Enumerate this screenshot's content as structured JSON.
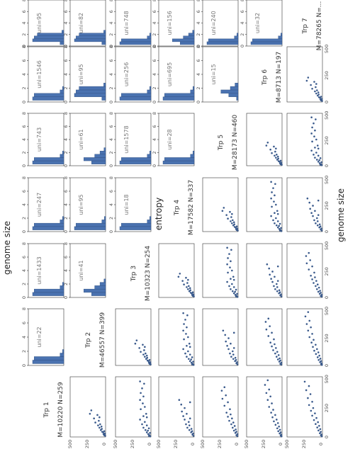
{
  "figure": {
    "top_label": "entropy",
    "right_label": "genome size",
    "bottom_label": "genome size"
  },
  "colors": {
    "bar": "#4a72b0",
    "bar_edge": "#2f4f7f",
    "point": "#3a5a8c",
    "axis": "#333333",
    "tick_text": "#555555",
    "label_text": "#777777"
  },
  "chart_data": {
    "type": "scatter",
    "subtype": "pair-grid (rotated 90°): diagonal labels, upper-triangle entropy histograms, lower-triangle genome size scatter plots",
    "groups": [
      {
        "name": "Trp 1",
        "M": "M=10220",
        "N": "N=259"
      },
      {
        "name": "Trp 2",
        "M": "M=46557",
        "N": "N=399"
      },
      {
        "name": "Trp 3",
        "M": "M=10323",
        "N": "N=254"
      },
      {
        "name": "Trp 4",
        "M": "M=17582",
        "N": "N=337"
      },
      {
        "name": "Trp 5",
        "M": "M=28173",
        "N": "N=460"
      },
      {
        "name": "Trp 6",
        "M": "M=8713",
        "N": "N=197"
      },
      {
        "name": "Trp 7",
        "M": "M=78265",
        "N": "N=..."
      }
    ],
    "uni_grid": [
      [
        "uni=95",
        "uni=1546",
        "uni=743",
        "uni=247",
        "uni=1433",
        "uni=22"
      ],
      [
        "uni=82",
        "uni=95",
        "uni=61",
        "uni=95",
        "uni=41"
      ],
      [
        "uni=748",
        "uni=256",
        "uni=1578",
        "uni=18"
      ],
      [
        "uni=156",
        "uni=695",
        "uni=28"
      ],
      [
        "uni=240",
        "uni=15"
      ],
      [
        "uni=32"
      ]
    ],
    "histogram_x_ticks": [
      "0",
      "2",
      "4",
      "6",
      "8"
    ],
    "histogram_x_range": [
      0,
      8
    ],
    "histogram_shapes": {
      "spike": [
        [
          0.5,
          1.0
        ],
        [
          1.0,
          0.95
        ],
        [
          1.5,
          0.12
        ],
        [
          2.0,
          0.04
        ]
      ],
      "flat": [
        [
          0.5,
          0.12
        ],
        [
          1.0,
          1.0
        ],
        [
          1.5,
          0.95
        ],
        [
          2.0,
          0.85
        ],
        [
          2.5,
          0.06
        ]
      ],
      "mid": [
        [
          0.5,
          0.45
        ],
        [
          1.0,
          0.7
        ],
        [
          1.5,
          0.35
        ],
        [
          2.0,
          0.18
        ],
        [
          2.5,
          0.05
        ]
      ],
      "bimodal": [
        [
          0.5,
          0.05
        ],
        [
          1.0,
          0.3
        ],
        [
          1.5,
          0.55
        ],
        [
          2.0,
          0.25
        ],
        [
          2.5,
          0.1
        ]
      ]
    },
    "histogram_shape_map": [
      [
        "flat",
        "spike",
        "spike",
        "spike",
        "spike",
        "spike"
      ],
      [
        "flat",
        "flat",
        "mid",
        "spike",
        "mid"
      ],
      [
        "spike",
        "spike",
        "spike",
        "spike"
      ],
      [
        "mid",
        "spike",
        "spike"
      ],
      [
        "spike",
        "bimodal"
      ],
      [
        "spike"
      ]
    ],
    "scatter_x_ticks": [
      "0",
      "250",
      "500"
    ],
    "scatter_y_ticks": [
      "0",
      "250",
      "500"
    ],
    "scatter_x_range": [
      0,
      520
    ],
    "scatter_y_range": [
      0,
      520
    ],
    "scatter_points": [
      [
        [
          10,
          5
        ],
        [
          15,
          20
        ],
        [
          20,
          15
        ],
        [
          25,
          30
        ],
        [
          30,
          10
        ],
        [
          40,
          35
        ],
        [
          45,
          50
        ],
        [
          50,
          20
        ],
        [
          60,
          70
        ],
        [
          70,
          55
        ],
        [
          80,
          90
        ],
        [
          90,
          60
        ],
        [
          100,
          110
        ],
        [
          110,
          80
        ],
        [
          125,
          150
        ],
        [
          140,
          100
        ],
        [
          160,
          170
        ],
        [
          170,
          90
        ],
        [
          190,
          120
        ],
        [
          200,
          230
        ],
        [
          230,
          210
        ]
      ],
      [
        [
          5,
          10
        ],
        [
          10,
          30
        ],
        [
          15,
          20
        ],
        [
          25,
          40
        ],
        [
          35,
          15
        ],
        [
          40,
          60
        ],
        [
          55,
          45
        ],
        [
          60,
          80
        ],
        [
          75,
          30
        ],
        [
          80,
          110
        ],
        [
          100,
          60
        ],
        [
          110,
          130
        ],
        [
          130,
          90
        ],
        [
          150,
          160
        ],
        [
          170,
          60
        ],
        [
          180,
          110
        ],
        [
          200,
          70
        ],
        [
          240,
          150
        ],
        [
          260,
          90
        ],
        [
          290,
          120
        ],
        [
          320,
          160
        ],
        [
          350,
          110
        ],
        [
          380,
          150
        ],
        [
          420,
          130
        ],
        [
          460,
          100
        ],
        [
          480,
          160
        ]
      ],
      [
        [
          10,
          10
        ],
        [
          20,
          25
        ],
        [
          30,
          15
        ],
        [
          40,
          45
        ],
        [
          50,
          30
        ],
        [
          60,
          70
        ],
        [
          70,
          40
        ],
        [
          80,
          100
        ],
        [
          100,
          70
        ],
        [
          110,
          120
        ],
        [
          130,
          80
        ],
        [
          150,
          140
        ],
        [
          160,
          60
        ],
        [
          180,
          160
        ],
        [
          200,
          110
        ],
        [
          220,
          180
        ],
        [
          250,
          140
        ],
        [
          280,
          190
        ],
        [
          300,
          60
        ],
        [
          320,
          220
        ]
      ],
      [
        [
          8,
          12
        ],
        [
          15,
          25
        ],
        [
          25,
          10
        ],
        [
          35,
          40
        ],
        [
          45,
          25
        ],
        [
          55,
          60
        ],
        [
          65,
          35
        ],
        [
          80,
          80
        ],
        [
          95,
          50
        ],
        [
          110,
          100
        ],
        [
          125,
          70
        ],
        [
          140,
          130
        ],
        [
          160,
          90
        ],
        [
          175,
          150
        ],
        [
          195,
          110
        ],
        [
          210,
          170
        ],
        [
          240,
          120
        ],
        [
          270,
          200
        ],
        [
          300,
          150
        ],
        [
          330,
          230
        ],
        [
          360,
          180
        ],
        [
          400,
          240
        ],
        [
          430,
          200
        ]
      ],
      [
        [
          5,
          8
        ],
        [
          12,
          20
        ],
        [
          20,
          12
        ],
        [
          30,
          35
        ],
        [
          40,
          20
        ],
        [
          50,
          55
        ],
        [
          62,
          30
        ],
        [
          75,
          70
        ],
        [
          90,
          45
        ],
        [
          105,
          95
        ],
        [
          120,
          60
        ],
        [
          135,
          120
        ],
        [
          150,
          80
        ],
        [
          170,
          140
        ],
        [
          190,
          100
        ],
        [
          210,
          160
        ],
        [
          235,
          130
        ],
        [
          260,
          190
        ],
        [
          290,
          150
        ],
        [
          320,
          210
        ],
        [
          350,
          170
        ],
        [
          380,
          230
        ],
        [
          410,
          190
        ],
        [
          450,
          250
        ],
        [
          490,
          210
        ]
      ],
      [
        [
          6,
          10
        ],
        [
          14,
          22
        ],
        [
          22,
          14
        ],
        [
          32,
          38
        ],
        [
          44,
          24
        ],
        [
          56,
          58
        ],
        [
          68,
          32
        ],
        [
          82,
          76
        ],
        [
          96,
          48
        ],
        [
          112,
          100
        ],
        [
          128,
          66
        ],
        [
          146,
          124
        ],
        [
          164,
          88
        ],
        [
          184,
          150
        ],
        [
          204,
          110
        ],
        [
          226,
          168
        ],
        [
          250,
          136
        ],
        [
          276,
          196
        ],
        [
          304,
          150
        ],
        [
          336,
          214
        ],
        [
          370,
          176
        ],
        [
          404,
          238
        ],
        [
          440,
          198
        ],
        [
          478,
          260
        ]
      ]
    ]
  }
}
